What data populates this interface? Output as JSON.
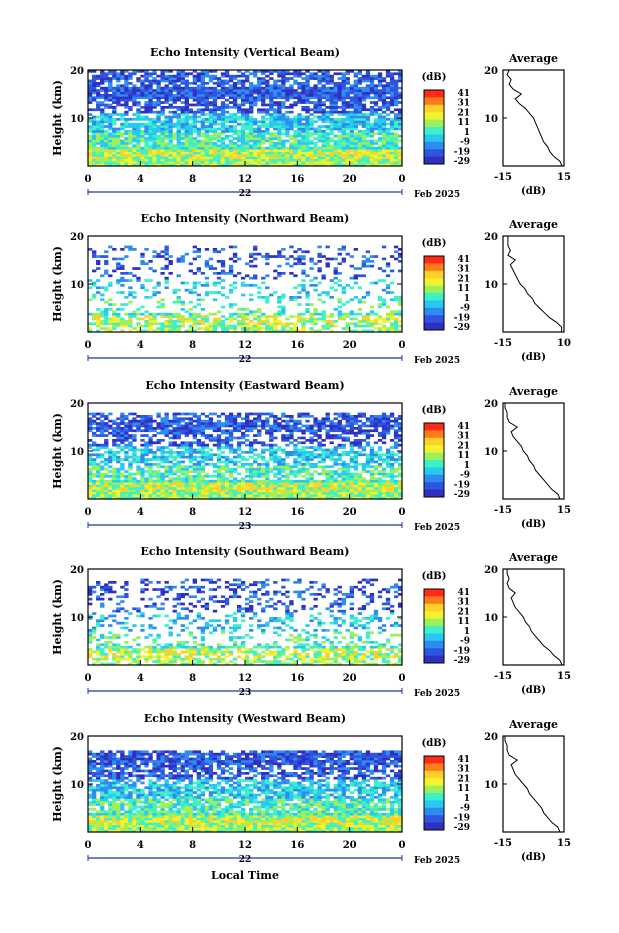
{
  "colorbar": {
    "unit": "(dB)",
    "ticks": [
      "41",
      "31",
      "21",
      "11",
      "1",
      "-9",
      "-19",
      "-29"
    ],
    "colors": [
      "#ff2a1a",
      "#ff7a1a",
      "#ffcf2a",
      "#f4f22e",
      "#9cf05a",
      "#3cf0c8",
      "#28c8f0",
      "#2e8cf0",
      "#2f55e0",
      "#3030c0"
    ]
  },
  "axes": {
    "y_label": "Height (km)",
    "y_ticks": [
      "20",
      "10"
    ],
    "x_ticks": [
      "0",
      "4",
      "8",
      "12",
      "16",
      "20",
      "0"
    ],
    "date_suffix": "Feb 2025",
    "x_title": "Local Time",
    "avg_title": "Average",
    "avg_xlabel": "(dB)",
    "avg_y_ticks": [
      "20",
      "10"
    ]
  },
  "chart_data": [
    {
      "type": "heatmap",
      "title": "Echo Intensity (Vertical Beam)",
      "day_label": "22",
      "avg_ticks": [
        "-15",
        "15"
      ],
      "ylim": [
        0,
        20
      ],
      "xlim": [
        0,
        24
      ],
      "density": 0.95,
      "top_km": 20,
      "avg_profile": [
        [
          0,
          14
        ],
        [
          1,
          13
        ],
        [
          2,
          10
        ],
        [
          3,
          8
        ],
        [
          4,
          7
        ],
        [
          5,
          5
        ],
        [
          6,
          4
        ],
        [
          7,
          3
        ],
        [
          8,
          2
        ],
        [
          9,
          1
        ],
        [
          10,
          0
        ],
        [
          11,
          -2
        ],
        [
          12,
          -4
        ],
        [
          13,
          -7
        ],
        [
          14,
          -9
        ],
        [
          15,
          -6
        ],
        [
          16,
          -10
        ],
        [
          17,
          -12
        ],
        [
          18,
          -11
        ],
        [
          19,
          -13
        ],
        [
          20,
          -12
        ]
      ]
    },
    {
      "type": "heatmap",
      "title": "Echo Intensity (Northward Beam)",
      "day_label": "22",
      "avg_ticks": [
        "-15",
        "10"
      ],
      "ylim": [
        0,
        20
      ],
      "xlim": [
        0,
        24
      ],
      "density": 0.3,
      "top_km": 18,
      "avg_profile": [
        [
          0,
          9
        ],
        [
          1,
          9
        ],
        [
          2,
          7
        ],
        [
          3,
          4
        ],
        [
          4,
          2
        ],
        [
          5,
          0
        ],
        [
          6,
          -2
        ],
        [
          7,
          -3
        ],
        [
          8,
          -5
        ],
        [
          9,
          -6
        ],
        [
          10,
          -8
        ],
        [
          11,
          -9
        ],
        [
          12,
          -10
        ],
        [
          13,
          -11
        ],
        [
          14,
          -12
        ],
        [
          15,
          -10
        ],
        [
          16,
          -13
        ],
        [
          17,
          -12
        ],
        [
          18,
          -13
        ],
        [
          19,
          -13
        ],
        [
          20,
          -13
        ]
      ]
    },
    {
      "type": "heatmap",
      "title": "Echo Intensity (Eastward Beam)",
      "day_label": "23",
      "avg_ticks": [
        "-15",
        "15"
      ],
      "ylim": [
        0,
        20
      ],
      "xlim": [
        0,
        24
      ],
      "density": 0.8,
      "top_km": 18,
      "avg_profile": [
        [
          0,
          13
        ],
        [
          1,
          12
        ],
        [
          2,
          9
        ],
        [
          3,
          7
        ],
        [
          4,
          5
        ],
        [
          5,
          3
        ],
        [
          6,
          1
        ],
        [
          7,
          0
        ],
        [
          8,
          -2
        ],
        [
          9,
          -3
        ],
        [
          10,
          -5
        ],
        [
          11,
          -6
        ],
        [
          12,
          -8
        ],
        [
          13,
          -10
        ],
        [
          14,
          -11
        ],
        [
          15,
          -8
        ],
        [
          16,
          -12
        ],
        [
          17,
          -13
        ],
        [
          18,
          -13
        ],
        [
          19,
          -14
        ],
        [
          20,
          -14
        ]
      ]
    },
    {
      "type": "heatmap",
      "title": "Echo Intensity (Southward Beam)",
      "day_label": "23",
      "avg_ticks": [
        "-15",
        "15"
      ],
      "ylim": [
        0,
        20
      ],
      "xlim": [
        0,
        24
      ],
      "density": 0.35,
      "top_km": 18,
      "avg_profile": [
        [
          0,
          14
        ],
        [
          1,
          13
        ],
        [
          2,
          10
        ],
        [
          3,
          8
        ],
        [
          4,
          5
        ],
        [
          5,
          3
        ],
        [
          6,
          1
        ],
        [
          7,
          -1
        ],
        [
          8,
          -2
        ],
        [
          9,
          -4
        ],
        [
          10,
          -5
        ],
        [
          11,
          -7
        ],
        [
          12,
          -9
        ],
        [
          13,
          -10
        ],
        [
          14,
          -11
        ],
        [
          15,
          -9
        ],
        [
          16,
          -12
        ],
        [
          17,
          -13
        ],
        [
          18,
          -12
        ],
        [
          19,
          -13
        ],
        [
          20,
          -13
        ]
      ]
    },
    {
      "type": "heatmap",
      "title": "Echo Intensity (Westward Beam)",
      "day_label": "22",
      "avg_ticks": [
        "-15",
        "15"
      ],
      "ylim": [
        0,
        20
      ],
      "xlim": [
        0,
        24
      ],
      "density": 0.9,
      "top_km": 17,
      "avg_profile": [
        [
          0,
          13
        ],
        [
          1,
          12
        ],
        [
          2,
          9
        ],
        [
          3,
          7
        ],
        [
          4,
          5
        ],
        [
          5,
          4
        ],
        [
          6,
          2
        ],
        [
          7,
          0
        ],
        [
          8,
          -2
        ],
        [
          9,
          -3
        ],
        [
          10,
          -5
        ],
        [
          11,
          -7
        ],
        [
          12,
          -9
        ],
        [
          13,
          -10
        ],
        [
          14,
          -11
        ],
        [
          15,
          -8
        ],
        [
          16,
          -12
        ],
        [
          17,
          -13
        ],
        [
          18,
          -13
        ],
        [
          19,
          -14
        ],
        [
          20,
          -14
        ]
      ]
    }
  ]
}
